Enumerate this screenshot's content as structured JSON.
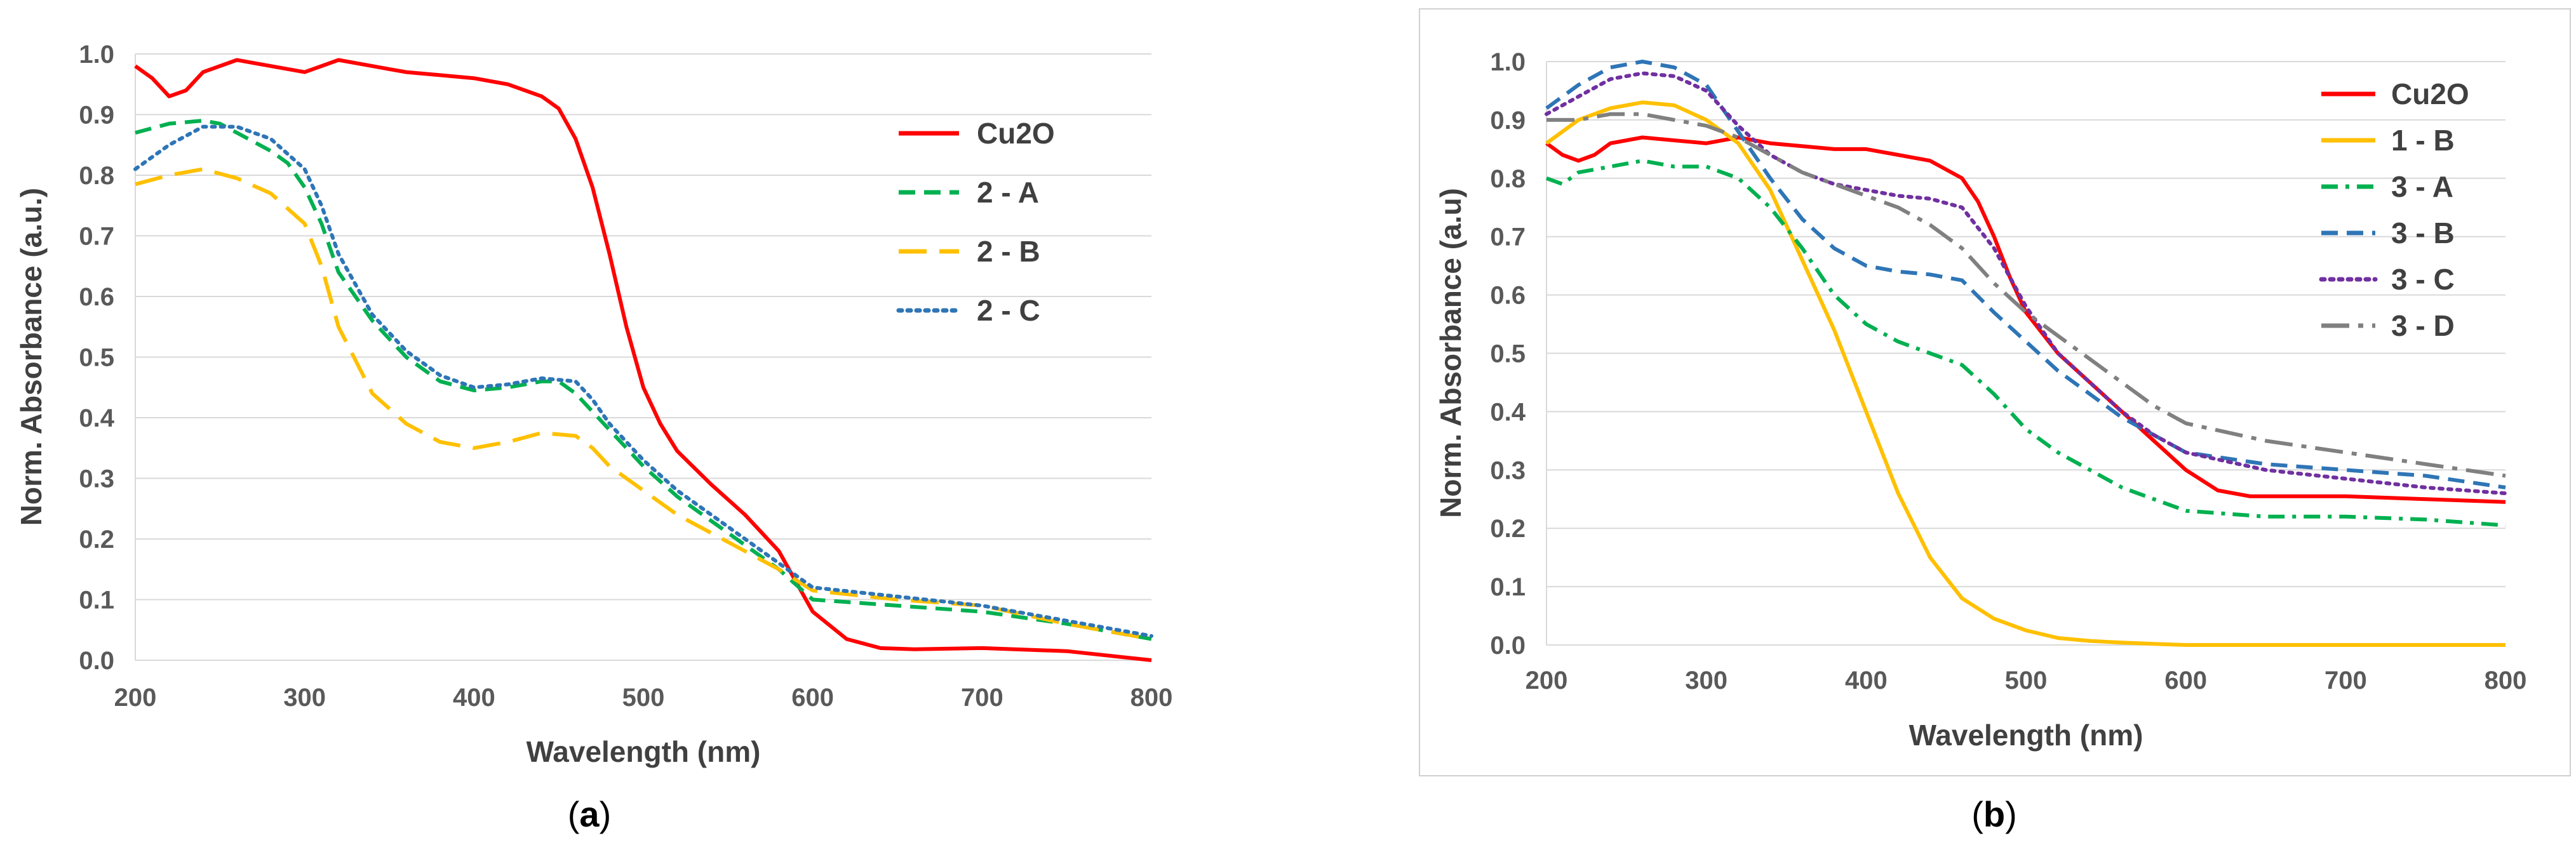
{
  "chart_data": [
    {
      "type": "line",
      "caption": "(a)",
      "caption_label": "a",
      "xlabel": "Wavelength (nm)",
      "ylabel": "Norm. Absorbance (a.u.)",
      "xlim": [
        200,
        800
      ],
      "ylim": [
        0,
        1
      ],
      "x_ticks": [
        "200",
        "300",
        "400",
        "500",
        "600",
        "700",
        "800"
      ],
      "y_ticks": [
        "0.0",
        "0.1",
        "0.2",
        "0.3",
        "0.4",
        "0.5",
        "0.6",
        "0.7",
        "0.8",
        "0.9",
        "1.0"
      ],
      "grid": true,
      "legend_position": "top-right",
      "series": [
        {
          "name": "Cu2O",
          "color": "#ff0000",
          "dash": "solid",
          "x": [
            200,
            210,
            220,
            230,
            240,
            260,
            280,
            300,
            320,
            340,
            350,
            360,
            380,
            400,
            420,
            440,
            450,
            460,
            470,
            480,
            490,
            500,
            510,
            520,
            540,
            560,
            580,
            590,
            600,
            620,
            640,
            660,
            700,
            750,
            800
          ],
          "y": [
            0.98,
            0.96,
            0.93,
            0.94,
            0.97,
            0.99,
            0.98,
            0.97,
            0.99,
            0.98,
            0.975,
            0.97,
            0.965,
            0.96,
            0.95,
            0.93,
            0.91,
            0.86,
            0.78,
            0.67,
            0.55,
            0.45,
            0.39,
            0.345,
            0.29,
            0.24,
            0.18,
            0.13,
            0.08,
            0.035,
            0.02,
            0.018,
            0.02,
            0.015,
            0.0
          ]
        },
        {
          "name": "2 - A",
          "color": "#00b050",
          "dash": "dash",
          "x": [
            200,
            220,
            240,
            250,
            260,
            280,
            290,
            300,
            310,
            320,
            340,
            360,
            380,
            400,
            420,
            440,
            450,
            460,
            480,
            500,
            520,
            540,
            560,
            580,
            600,
            650,
            700,
            750,
            800
          ],
          "y": [
            0.87,
            0.885,
            0.89,
            0.885,
            0.87,
            0.84,
            0.82,
            0.78,
            0.72,
            0.64,
            0.56,
            0.5,
            0.46,
            0.445,
            0.45,
            0.46,
            0.46,
            0.44,
            0.38,
            0.32,
            0.27,
            0.23,
            0.19,
            0.15,
            0.1,
            0.09,
            0.08,
            0.06,
            0.035
          ]
        },
        {
          "name": "2 - B",
          "color": "#ffc000",
          "dash": "longdash",
          "x": [
            200,
            220,
            240,
            260,
            280,
            300,
            310,
            320,
            340,
            360,
            380,
            400,
            420,
            440,
            460,
            470,
            480,
            500,
            520,
            540,
            560,
            580,
            600,
            650,
            700,
            750,
            800
          ],
          "y": [
            0.785,
            0.8,
            0.81,
            0.795,
            0.77,
            0.72,
            0.65,
            0.55,
            0.44,
            0.39,
            0.36,
            0.35,
            0.36,
            0.375,
            0.37,
            0.35,
            0.32,
            0.28,
            0.24,
            0.21,
            0.18,
            0.15,
            0.115,
            0.1,
            0.09,
            0.06,
            0.035
          ]
        },
        {
          "name": "2 - C",
          "color": "#2e75b6",
          "dash": "dot",
          "x": [
            200,
            220,
            240,
            260,
            280,
            300,
            310,
            320,
            340,
            360,
            380,
            400,
            420,
            440,
            460,
            470,
            480,
            500,
            520,
            540,
            560,
            580,
            600,
            650,
            700,
            750,
            800
          ],
          "y": [
            0.81,
            0.85,
            0.88,
            0.88,
            0.86,
            0.81,
            0.75,
            0.67,
            0.57,
            0.51,
            0.47,
            0.45,
            0.455,
            0.465,
            0.46,
            0.43,
            0.39,
            0.33,
            0.28,
            0.24,
            0.2,
            0.16,
            0.12,
            0.105,
            0.09,
            0.065,
            0.04
          ]
        }
      ]
    },
    {
      "type": "line",
      "caption": "(b)",
      "caption_label": "b",
      "xlabel": "Wavelength (nm)",
      "ylabel": "Norm. Absorbance (a.u)",
      "xlim": [
        200,
        800
      ],
      "ylim": [
        0,
        1
      ],
      "x_ticks": [
        "200",
        "300",
        "400",
        "500",
        "600",
        "700",
        "800"
      ],
      "y_ticks": [
        "0.0",
        "0.1",
        "0.2",
        "0.3",
        "0.4",
        "0.5",
        "0.6",
        "0.7",
        "0.8",
        "0.9",
        "1.0"
      ],
      "grid": true,
      "legend_position": "top-right",
      "series": [
        {
          "name": "Cu2O",
          "color": "#ff0000",
          "dash": "solid",
          "x": [
            200,
            210,
            220,
            230,
            240,
            260,
            280,
            300,
            320,
            340,
            360,
            380,
            400,
            420,
            440,
            460,
            470,
            480,
            490,
            500,
            520,
            540,
            560,
            580,
            600,
            620,
            640,
            660,
            700,
            750,
            800
          ],
          "y": [
            0.86,
            0.84,
            0.83,
            0.84,
            0.86,
            0.87,
            0.865,
            0.86,
            0.87,
            0.86,
            0.855,
            0.85,
            0.85,
            0.84,
            0.83,
            0.8,
            0.76,
            0.7,
            0.63,
            0.57,
            0.5,
            0.45,
            0.4,
            0.35,
            0.3,
            0.265,
            0.255,
            0.255,
            0.255,
            0.25,
            0.245
          ]
        },
        {
          "name": "1 - B",
          "color": "#ffc000",
          "dash": "solid",
          "x": [
            200,
            220,
            240,
            260,
            280,
            300,
            320,
            340,
            360,
            380,
            400,
            420,
            440,
            460,
            480,
            500,
            520,
            540,
            560,
            580,
            600,
            650,
            700,
            750,
            800
          ],
          "y": [
            0.86,
            0.9,
            0.92,
            0.93,
            0.925,
            0.9,
            0.86,
            0.78,
            0.66,
            0.54,
            0.4,
            0.26,
            0.15,
            0.08,
            0.045,
            0.025,
            0.012,
            0.007,
            0.004,
            0.002,
            0.0,
            0.0,
            0.0,
            0.0,
            0.0
          ]
        },
        {
          "name": "3 - A",
          "color": "#00b050",
          "dash": "dashdot",
          "x": [
            200,
            210,
            220,
            240,
            260,
            280,
            300,
            320,
            340,
            360,
            380,
            400,
            420,
            440,
            460,
            480,
            500,
            520,
            540,
            560,
            580,
            600,
            650,
            700,
            750,
            800
          ],
          "y": [
            0.8,
            0.79,
            0.81,
            0.82,
            0.83,
            0.82,
            0.82,
            0.8,
            0.75,
            0.68,
            0.6,
            0.55,
            0.52,
            0.5,
            0.48,
            0.43,
            0.37,
            0.33,
            0.3,
            0.27,
            0.25,
            0.23,
            0.22,
            0.22,
            0.215,
            0.205
          ]
        },
        {
          "name": "3 - B",
          "color": "#2e75b6",
          "dash": "dash",
          "x": [
            200,
            220,
            240,
            260,
            280,
            300,
            320,
            340,
            360,
            380,
            400,
            420,
            440,
            460,
            480,
            500,
            520,
            540,
            560,
            580,
            600,
            650,
            700,
            750,
            800
          ],
          "y": [
            0.92,
            0.96,
            0.99,
            1.0,
            0.99,
            0.96,
            0.88,
            0.8,
            0.73,
            0.68,
            0.65,
            0.64,
            0.635,
            0.625,
            0.57,
            0.52,
            0.47,
            0.43,
            0.39,
            0.36,
            0.33,
            0.31,
            0.3,
            0.29,
            0.27
          ]
        },
        {
          "name": "3 - C",
          "color": "#7030a0",
          "dash": "dot",
          "x": [
            200,
            220,
            240,
            260,
            280,
            300,
            320,
            340,
            360,
            380,
            400,
            420,
            440,
            460,
            480,
            500,
            520,
            540,
            560,
            580,
            600,
            650,
            700,
            750,
            800
          ],
          "y": [
            0.91,
            0.94,
            0.97,
            0.98,
            0.975,
            0.95,
            0.89,
            0.84,
            0.81,
            0.79,
            0.78,
            0.77,
            0.765,
            0.75,
            0.68,
            0.58,
            0.5,
            0.45,
            0.4,
            0.36,
            0.33,
            0.3,
            0.285,
            0.27,
            0.26
          ]
        },
        {
          "name": "3 - D",
          "color": "#808080",
          "dash": "longdashdot",
          "x": [
            200,
            220,
            240,
            260,
            280,
            300,
            320,
            340,
            360,
            380,
            400,
            420,
            440,
            460,
            480,
            500,
            520,
            540,
            560,
            580,
            600,
            650,
            700,
            750,
            800
          ],
          "y": [
            0.9,
            0.9,
            0.91,
            0.91,
            0.9,
            0.89,
            0.87,
            0.84,
            0.81,
            0.79,
            0.77,
            0.75,
            0.72,
            0.68,
            0.62,
            0.57,
            0.53,
            0.49,
            0.45,
            0.41,
            0.38,
            0.35,
            0.33,
            0.31,
            0.29
          ]
        }
      ]
    }
  ]
}
